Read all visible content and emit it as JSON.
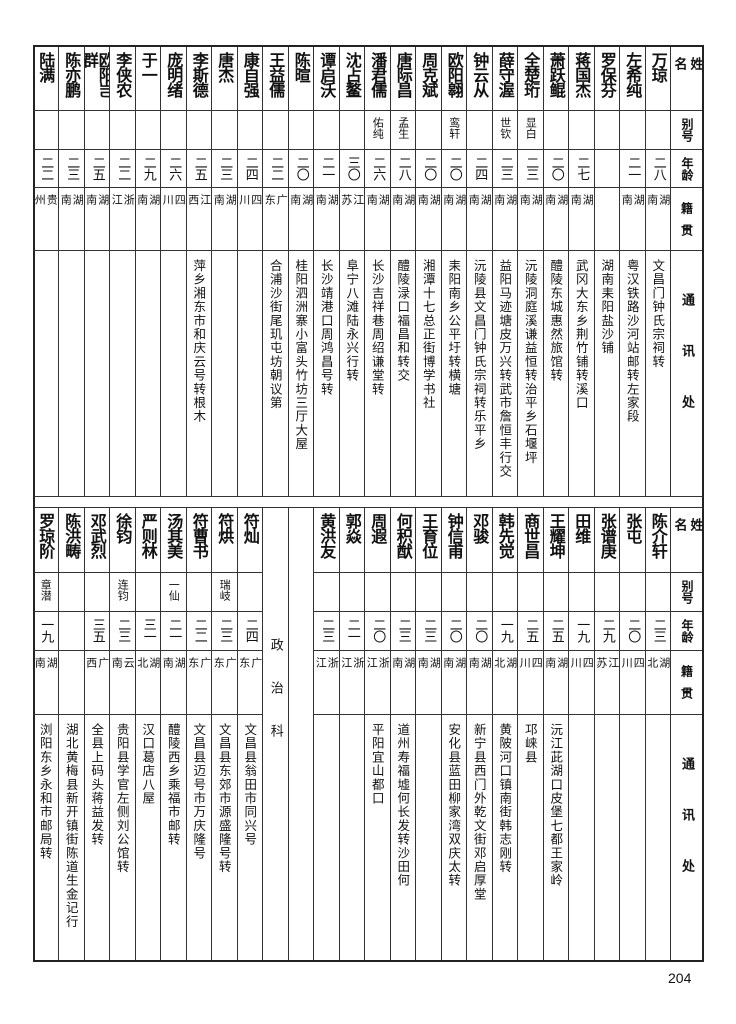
{
  "headers": {
    "name": "姓名",
    "alias": "别号",
    "age": "年龄",
    "origin": "籍贯",
    "address": "通讯处"
  },
  "top_table": {
    "people": [
      {
        "name": "万琼",
        "alias": "",
        "age": "二八",
        "origin": "湖南",
        "address": "文昌门钟氏宗祠转"
      },
      {
        "name": "左希纯",
        "alias": "",
        "age": "二一",
        "origin": "湖南",
        "address": "粤汉铁路沙河站邮转左家段"
      },
      {
        "name": "罗保芬",
        "alias": "",
        "age": "",
        "origin": "",
        "address": "湖南耒阳盐沙铺"
      },
      {
        "name": "蒋国杰",
        "alias": "",
        "age": "二七",
        "origin": "湖南",
        "address": "武冈大东乡荆竹铺转溪口"
      },
      {
        "name": "萧跃鲲",
        "alias": "",
        "age": "二〇",
        "origin": "湖南",
        "address": "醴陵东城惠然旅馆转"
      },
      {
        "name": "全楚珩",
        "alias": "显白",
        "age": "二三",
        "origin": "湖南",
        "address": "沅陵洞庭溪谦益恒转治平乡石堰坪"
      },
      {
        "name": "薛守渥",
        "alias": "世钦",
        "age": "二三",
        "origin": "湖南",
        "address": "益阳马迹塘皮万兴转武市詹恒丰行交"
      },
      {
        "name": "钟云从",
        "alias": "",
        "age": "二四",
        "origin": "湖南",
        "address": "沅陵县文昌门钟氏宗祠转乐平乡"
      },
      {
        "name": "欧阳翱",
        "alias": "鸾轩",
        "age": "二〇",
        "origin": "湖南",
        "address": "耒阳南乡公平圩转横塘"
      },
      {
        "name": "周克斌",
        "alias": "",
        "age": "二〇",
        "origin": "湖南",
        "address": "湘潭十七总正街博学书社"
      },
      {
        "name": "唐际昌",
        "alias": "孟生",
        "age": "二八",
        "origin": "湖南",
        "address": "醴陵渌口福昌和转交"
      },
      {
        "name": "潘君儒",
        "alias": "佑纯",
        "age": "二六",
        "origin": "湖南",
        "address": "长沙吉祥巷周绍谦堂转"
      },
      {
        "name": "沈占鳌",
        "alias": "",
        "age": "三〇",
        "origin": "江苏",
        "address": "阜宁八滩陆永兴行转"
      },
      {
        "name": "谭启沃",
        "alias": "",
        "age": "二一",
        "origin": "湖南",
        "address": "长沙靖港口周鸿昌号转"
      },
      {
        "name": "陈暄",
        "alias": "",
        "age": "二〇",
        "origin": "湖南",
        "address": "桂阳泗洲寨小富头竹坊三厅大屋"
      },
      {
        "name": "王益儒",
        "alias": "",
        "age": "二二",
        "origin": "广东",
        "address": "合浦沙街尾玑屯坊朝议第"
      },
      {
        "name": "康自强",
        "alias": "",
        "age": "二四",
        "origin": "四川",
        "address": ""
      },
      {
        "name": "唐杰",
        "alias": "",
        "age": "二三",
        "origin": "湖南",
        "address": ""
      },
      {
        "name": "李斯德",
        "alias": "",
        "age": "二五",
        "origin": "江西",
        "address": "萍乡湘东市和庆云号转根木"
      },
      {
        "name": "庞明绪",
        "alias": "",
        "age": "二六",
        "origin": "四川",
        "address": ""
      },
      {
        "name": "于一",
        "alias": "",
        "age": "二九",
        "origin": "湖南",
        "address": ""
      },
      {
        "name": "李侠农",
        "alias": "",
        "age": "二二",
        "origin": "浙江",
        "address": ""
      },
      {
        "name": "欧阳岂群",
        "alias": "",
        "age": "二五",
        "origin": "湖南",
        "address": ""
      },
      {
        "name": "陈亦鹏",
        "alias": "",
        "age": "二三",
        "origin": "湖南",
        "address": ""
      },
      {
        "name": "陆满",
        "alias": "",
        "age": "二二",
        "origin": "贵州",
        "address": ""
      }
    ]
  },
  "bottom_table": {
    "people_right": [
      {
        "name": "陈介轩",
        "alias": "",
        "age": "二三",
        "origin": "湖北",
        "address": ""
      },
      {
        "name": "张屯",
        "alias": "",
        "age": "二〇",
        "origin": "四川",
        "address": ""
      },
      {
        "name": "张谱庚",
        "alias": "",
        "age": "二九",
        "origin": "江苏",
        "address": ""
      },
      {
        "name": "田维",
        "alias": "",
        "age": "一九",
        "origin": "四川",
        "address": ""
      },
      {
        "name": "王耀坤",
        "alias": "",
        "age": "二五",
        "origin": "湖南",
        "address": "沅江茈湖口皮堡七都王家岭"
      },
      {
        "name": "商世昌",
        "alias": "",
        "age": "二五",
        "origin": "四川",
        "address": "邛崃县"
      },
      {
        "name": "韩先觉",
        "alias": "",
        "age": "一九",
        "origin": "湖北",
        "address": "黄陂河口镇南街韩志刚转"
      },
      {
        "name": "邓骏",
        "alias": "",
        "age": "二〇",
        "origin": "湖南",
        "address": "新宁县西门外乾文街邓启厚堂"
      },
      {
        "name": "钟信甫",
        "alias": "",
        "age": "二〇",
        "origin": "湖南",
        "address": "安化县蓝田柳家湾双庆太转"
      },
      {
        "name": "王育位",
        "alias": "",
        "age": "二三",
        "origin": "湖南",
        "address": ""
      },
      {
        "name": "何积猷",
        "alias": "",
        "age": "二三",
        "origin": "湖南",
        "address": "道州寿福墟何长发转沙田何"
      },
      {
        "name": "周遐",
        "alias": "",
        "age": "二〇",
        "origin": "浙江",
        "address": "平阳宜山都口"
      },
      {
        "name": "郭焱",
        "alias": "",
        "age": "二一",
        "origin": "浙江",
        "address": ""
      },
      {
        "name": "黄洪友",
        "alias": "",
        "age": "二三",
        "origin": "浙江",
        "address": ""
      }
    ],
    "section_title": "政治科",
    "people_left": [
      {
        "name": "符灿",
        "alias": "",
        "age": "二四",
        "origin": "广东",
        "address": "文昌县翁田市同兴号"
      },
      {
        "name": "符烘",
        "alias": "瑞岐",
        "age": "二三",
        "origin": "广东",
        "address": "文昌县东郊市源盛隆号转"
      },
      {
        "name": "符曹书",
        "alias": "",
        "age": "二二",
        "origin": "广东",
        "address": "文昌县迈号市万庆隆号"
      },
      {
        "name": "汤其美",
        "alias": "一仙",
        "age": "二一",
        "origin": "湖南",
        "address": "醴陵西乡乘福市邮转"
      },
      {
        "name": "严则林",
        "alias": "",
        "age": "三一",
        "origin": "湖北",
        "address": "汉口葛店八屋"
      },
      {
        "name": "徐钧",
        "alias": "连钧",
        "age": "二三",
        "origin": "云南",
        "address": "贵阳县学官左侧刘公馆转"
      },
      {
        "name": "邓武烈",
        "alias": "",
        "age": "三五",
        "origin": "广西",
        "address": "全县上码头蒋益发转"
      },
      {
        "name": "陈洪畴",
        "alias": "",
        "age": "",
        "origin": "",
        "address": "湖北黄梅县新开镇街陈道生金记行"
      },
      {
        "name": "罗琼阶",
        "alias": "章潜",
        "age": "一九",
        "origin": "湖南",
        "address": "浏阳东乡永和市邮局转"
      }
    ]
  },
  "page_number": "204"
}
